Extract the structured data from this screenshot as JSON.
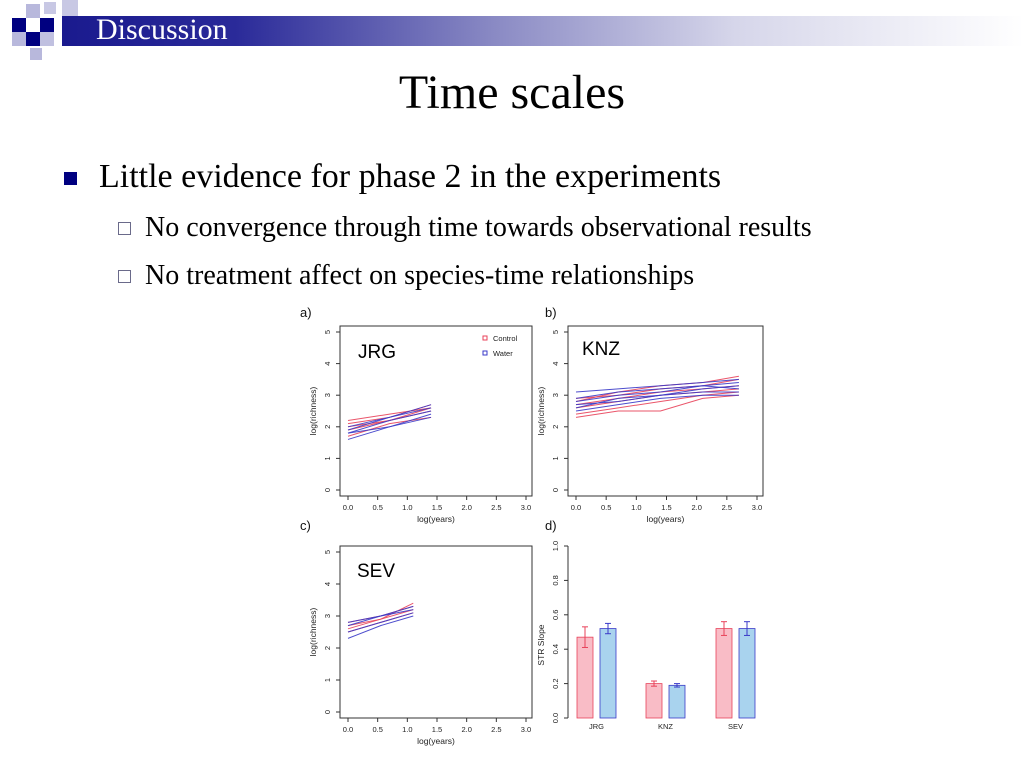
{
  "header": {
    "section": "Discussion"
  },
  "title": "Time scales",
  "bullets": [
    {
      "text": "Little evidence for phase 2 in the experiments",
      "sub": [
        "No convergence through time towards observational results",
        "No treatment affect on species-time relationships"
      ]
    }
  ],
  "colors": {
    "accent": "#000080",
    "control": "#e8425a",
    "water": "#3a3ac8",
    "control_bar": "#f9bcc6",
    "water_bar": "#a9d3ee"
  },
  "chart_data": [
    {
      "type": "line",
      "panel_label": "a)",
      "site": "JRG",
      "xlabel": "log(years)",
      "ylabel": "log(richness)",
      "xlim": [
        0,
        3
      ],
      "ylim": [
        0,
        5
      ],
      "xticks": [
        "0.0",
        "0.5",
        "1.0",
        "1.5",
        "2.0",
        "2.5",
        "3.0"
      ],
      "yticks": [
        "0",
        "1",
        "2",
        "3",
        "4",
        "5"
      ],
      "legend": [
        "Control",
        "Water"
      ],
      "series": [
        {
          "name": "Control",
          "x": [
            0,
            0.7,
            1.4
          ],
          "y": [
            2.1,
            2.3,
            2.7
          ]
        },
        {
          "name": "Control",
          "x": [
            0,
            0.7,
            1.4
          ],
          "y": [
            2.0,
            2.2,
            2.5
          ]
        },
        {
          "name": "Control",
          "x": [
            0,
            0.7,
            1.4
          ],
          "y": [
            1.9,
            2.2,
            2.6
          ]
        },
        {
          "name": "Control",
          "x": [
            0,
            0.7,
            1.4
          ],
          "y": [
            1.7,
            2.1,
            2.3
          ]
        },
        {
          "name": "Control",
          "x": [
            0,
            0.7,
            1.4
          ],
          "y": [
            2.2,
            2.4,
            2.6
          ]
        },
        {
          "name": "Water",
          "x": [
            0,
            0.7,
            1.4
          ],
          "y": [
            1.8,
            2.2,
            2.5
          ]
        },
        {
          "name": "Water",
          "x": [
            0,
            0.7,
            1.4
          ],
          "y": [
            1.6,
            2.0,
            2.4
          ]
        },
        {
          "name": "Water",
          "x": [
            0,
            0.7,
            1.4
          ],
          "y": [
            1.9,
            2.3,
            2.6
          ]
        },
        {
          "name": "Water",
          "x": [
            0,
            0.7,
            1.4
          ],
          "y": [
            2.0,
            2.3,
            2.7
          ]
        },
        {
          "name": "Water",
          "x": [
            0,
            0.7,
            1.4
          ],
          "y": [
            1.8,
            2.0,
            2.3
          ]
        }
      ]
    },
    {
      "type": "line",
      "panel_label": "b)",
      "site": "KNZ",
      "xlabel": "log(years)",
      "ylabel": "log(richness)",
      "xlim": [
        0,
        3
      ],
      "ylim": [
        0,
        5
      ],
      "xticks": [
        "0.0",
        "0.5",
        "1.0",
        "1.5",
        "2.0",
        "2.5",
        "3.0"
      ],
      "yticks": [
        "0",
        "1",
        "2",
        "3",
        "4",
        "5"
      ],
      "series": [
        {
          "name": "Control",
          "x": [
            0,
            0.7,
            1.4,
            2.1,
            2.7
          ],
          "y": [
            2.9,
            3.0,
            3.2,
            3.3,
            3.5
          ]
        },
        {
          "name": "Control",
          "x": [
            0,
            0.7,
            1.4,
            2.1,
            2.7
          ],
          "y": [
            2.6,
            2.8,
            3.0,
            3.1,
            3.2
          ]
        },
        {
          "name": "Control",
          "x": [
            0,
            0.7,
            1.4,
            2.1,
            2.7
          ],
          "y": [
            2.4,
            2.6,
            2.8,
            3.0,
            3.1
          ]
        },
        {
          "name": "Control",
          "x": [
            0,
            0.7,
            1.4,
            2.1,
            2.7
          ],
          "y": [
            2.3,
            2.5,
            2.5,
            2.9,
            3.0
          ]
        },
        {
          "name": "Control",
          "x": [
            0,
            0.7,
            1.4,
            2.1,
            2.7
          ],
          "y": [
            2.8,
            3.1,
            3.3,
            3.4,
            3.6
          ]
        },
        {
          "name": "Control",
          "x": [
            0,
            0.7,
            1.4,
            2.1,
            2.7
          ],
          "y": [
            2.7,
            2.9,
            3.1,
            3.2,
            3.3
          ]
        },
        {
          "name": "Water",
          "x": [
            0,
            0.7,
            1.4,
            2.1,
            2.7
          ],
          "y": [
            3.1,
            3.2,
            3.3,
            3.4,
            3.5
          ]
        },
        {
          "name": "Water",
          "x": [
            0,
            0.7,
            1.4,
            2.1,
            2.7
          ],
          "y": [
            2.8,
            3.0,
            3.1,
            3.3,
            3.4
          ]
        },
        {
          "name": "Water",
          "x": [
            0,
            0.7,
            1.4,
            2.1,
            2.7
          ],
          "y": [
            2.5,
            2.7,
            2.9,
            3.0,
            3.0
          ]
        },
        {
          "name": "Water",
          "x": [
            0,
            0.7,
            1.4,
            2.1,
            2.7
          ],
          "y": [
            2.7,
            2.8,
            3.0,
            3.2,
            3.3
          ]
        },
        {
          "name": "Water",
          "x": [
            0,
            0.7,
            1.4,
            2.1,
            2.7
          ],
          "y": [
            2.9,
            3.1,
            3.2,
            3.3,
            3.2
          ]
        },
        {
          "name": "Water",
          "x": [
            0,
            0.7,
            1.4,
            2.1,
            2.7
          ],
          "y": [
            2.6,
            2.9,
            3.0,
            3.1,
            3.1
          ]
        }
      ]
    },
    {
      "type": "line",
      "panel_label": "c)",
      "site": "SEV",
      "xlabel": "log(years)",
      "ylabel": "log(richness)",
      "xlim": [
        0,
        3
      ],
      "ylim": [
        0,
        5
      ],
      "xticks": [
        "0.0",
        "0.5",
        "1.0",
        "1.5",
        "2.0",
        "2.5",
        "3.0"
      ],
      "yticks": [
        "0",
        "1",
        "2",
        "3",
        "4",
        "5"
      ],
      "series": [
        {
          "name": "Control",
          "x": [
            0,
            0.55,
            1.1
          ],
          "y": [
            2.8,
            3.0,
            3.3
          ]
        },
        {
          "name": "Control",
          "x": [
            0,
            0.55,
            1.1
          ],
          "y": [
            2.6,
            2.9,
            3.2
          ]
        },
        {
          "name": "Control",
          "x": [
            0,
            0.55,
            1.1
          ],
          "y": [
            2.7,
            2.9,
            3.4
          ]
        },
        {
          "name": "Control",
          "x": [
            0,
            0.55,
            1.1
          ],
          "y": [
            2.5,
            2.8,
            3.1
          ]
        },
        {
          "name": "Water",
          "x": [
            0,
            0.55,
            1.1
          ],
          "y": [
            2.7,
            3.0,
            3.3
          ]
        },
        {
          "name": "Water",
          "x": [
            0,
            0.55,
            1.1
          ],
          "y": [
            2.5,
            2.8,
            3.1
          ]
        },
        {
          "name": "Water",
          "x": [
            0,
            0.55,
            1.1
          ],
          "y": [
            2.3,
            2.7,
            3.0
          ]
        },
        {
          "name": "Water",
          "x": [
            0,
            0.55,
            1.1
          ],
          "y": [
            2.8,
            3.0,
            3.2
          ]
        }
      ]
    },
    {
      "type": "bar",
      "panel_label": "d)",
      "ylabel": "STR Slope",
      "ylim": [
        0,
        1
      ],
      "yticks": [
        "0.0",
        "0.2",
        "0.4",
        "0.6",
        "0.8",
        "1.0"
      ],
      "categories": [
        "JRG",
        "KNZ",
        "SEV"
      ],
      "series": [
        {
          "name": "Control",
          "values": [
            0.47,
            0.2,
            0.52
          ],
          "errors": [
            0.06,
            0.015,
            0.04
          ]
        },
        {
          "name": "Water",
          "values": [
            0.52,
            0.19,
            0.52
          ],
          "errors": [
            0.03,
            0.01,
            0.04
          ]
        }
      ]
    }
  ]
}
